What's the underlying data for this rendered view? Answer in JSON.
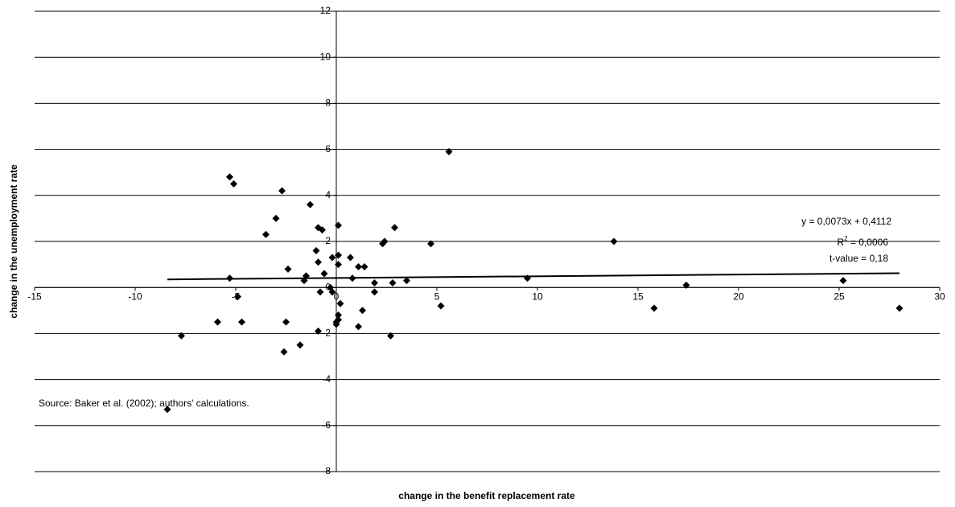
{
  "chart_data": {
    "type": "scatter",
    "x_label": "change in the benefit replacement rate",
    "y_label": "change in the unemployment rate",
    "xlim": [
      -15,
      30
    ],
    "xticks": [
      -15,
      -10,
      -5,
      0,
      5,
      10,
      15,
      20,
      25,
      30
    ],
    "ylim": [
      -8,
      12
    ],
    "yticks": [
      -8,
      -6,
      -4,
      -2,
      0,
      2,
      4,
      6,
      8,
      10,
      12
    ],
    "grid": true,
    "series": [
      {
        "color": "#000000",
        "x": [
          -5.3,
          -5.1,
          -2.7,
          -1.3,
          -3.0,
          -3.5,
          -0.9,
          -0.7,
          0.1,
          2.9,
          2.3,
          2.4,
          4.7,
          13.8,
          5.6,
          -1.0,
          -0.9,
          -1.5,
          -1.6,
          -0.2,
          0.1,
          0.7,
          0.1,
          1.1,
          1.4,
          -2.4,
          -0.6,
          -5.3,
          0.8,
          1.9,
          2.8,
          3.5,
          9.5,
          17.4,
          25.2,
          -0.3,
          -0.8,
          -0.2,
          1.9,
          -4.9,
          0.2,
          5.2,
          15.8,
          28.0,
          1.3,
          0.1,
          0.0,
          0.1,
          0.0,
          -5.9,
          -4.7,
          -2.5,
          1.1,
          -0.9,
          -7.7,
          2.7,
          -1.8,
          -2.6,
          -8.4
        ],
        "values": [
          4.8,
          4.5,
          4.2,
          3.6,
          3.0,
          2.3,
          2.6,
          2.5,
          2.7,
          2.6,
          1.9,
          2.0,
          1.9,
          2.0,
          5.9,
          1.6,
          1.1,
          0.5,
          0.3,
          1.3,
          1.4,
          1.3,
          1.0,
          0.9,
          0.9,
          0.8,
          0.6,
          0.4,
          0.4,
          0.2,
          0.2,
          0.3,
          0.4,
          0.1,
          0.3,
          0.0,
          -0.2,
          -0.2,
          -0.2,
          -0.4,
          -0.7,
          -0.8,
          -0.9,
          -0.9,
          -1.0,
          -1.2,
          -1.5,
          -1.4,
          -1.6,
          -1.5,
          -1.5,
          -1.5,
          -1.7,
          -1.9,
          -2.1,
          -2.1,
          -2.5,
          -2.8,
          -5.3
        ]
      }
    ],
    "trend_line": {
      "x": [
        -8.4,
        28.0
      ],
      "y": [
        0.35,
        0.62
      ]
    },
    "equation": "y = 0,0073x + 0,4112",
    "r_squared": {
      "base": "R",
      "sup": "2",
      "rest": " = 0,0006"
    },
    "t_value": "t-value = 0,18",
    "source": "Source: Baker et al. (2002); authors' calculations."
  }
}
